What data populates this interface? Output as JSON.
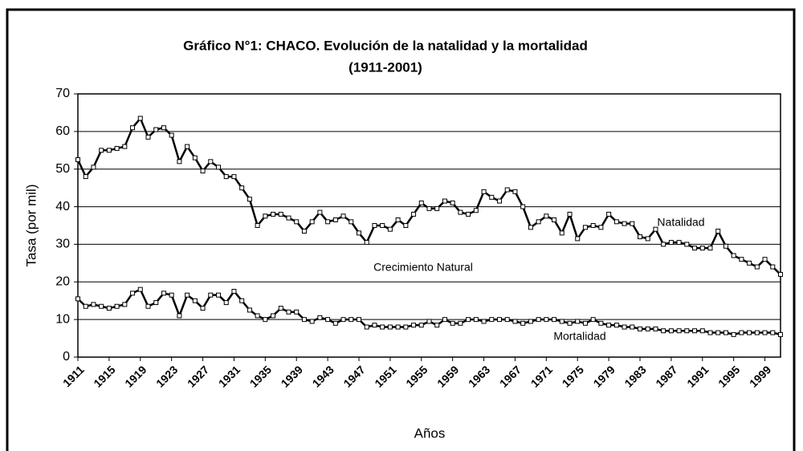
{
  "chart_data": {
    "type": "line",
    "title": "Gráfico N°1: CHACO. Evolución de la natalidad y la mortalidad",
    "subtitle": "(1911-2001)",
    "x_label": "Años",
    "y_label": "Tasa (por mil)",
    "x": [
      1911,
      1912,
      1913,
      1914,
      1915,
      1916,
      1917,
      1918,
      1919,
      1920,
      1921,
      1922,
      1923,
      1924,
      1925,
      1926,
      1927,
      1928,
      1929,
      1930,
      1931,
      1932,
      1933,
      1934,
      1935,
      1936,
      1937,
      1938,
      1939,
      1940,
      1941,
      1942,
      1943,
      1944,
      1945,
      1946,
      1947,
      1948,
      1949,
      1950,
      1951,
      1952,
      1953,
      1954,
      1955,
      1956,
      1957,
      1958,
      1959,
      1960,
      1961,
      1962,
      1963,
      1964,
      1965,
      1966,
      1967,
      1968,
      1969,
      1970,
      1971,
      1972,
      1973,
      1974,
      1975,
      1976,
      1977,
      1978,
      1979,
      1980,
      1981,
      1982,
      1983,
      1984,
      1985,
      1986,
      1987,
      1988,
      1989,
      1990,
      1991,
      1992,
      1993,
      1994,
      1995,
      1996,
      1997,
      1998,
      1999,
      2000,
      2001
    ],
    "series": [
      {
        "name": "Natalidad",
        "color": "#000000",
        "values": [
          52.5,
          48,
          50.5,
          55,
          55,
          55.5,
          56,
          61,
          63.5,
          58.5,
          60.5,
          61,
          59,
          52,
          56,
          53,
          49.5,
          52,
          50.5,
          48,
          48,
          45,
          42,
          35,
          37.5,
          38,
          38,
          37,
          36,
          33.5,
          36,
          38.5,
          36,
          36.5,
          37.5,
          36,
          33,
          30.5,
          35,
          35,
          34,
          36.5,
          35,
          38,
          41,
          39.5,
          39.5,
          41.5,
          41,
          38.5,
          38,
          39,
          44,
          42.5,
          41.5,
          44.5,
          44,
          40,
          34.5,
          36,
          37.5,
          36.5,
          33,
          38,
          31.5,
          34.5,
          35,
          34.5,
          38,
          36,
          35.5,
          35.5,
          32,
          31.5,
          34,
          30,
          30.5,
          30.5,
          30,
          29,
          29,
          29,
          33.5,
          29.5,
          27,
          26,
          25,
          24,
          26,
          24,
          22
        ]
      },
      {
        "name": "Mortalidad",
        "color": "#000000",
        "values": [
          15.5,
          13.5,
          14,
          13.5,
          13,
          13.5,
          14,
          17,
          18,
          13.5,
          14.5,
          17,
          16.5,
          11,
          16.5,
          15,
          13,
          16.5,
          16.5,
          14.5,
          17.5,
          15,
          12.5,
          11,
          10,
          11,
          13,
          12,
          12,
          10,
          9.5,
          10.5,
          10,
          9,
          10,
          10,
          10,
          8,
          8.5,
          8,
          8,
          8,
          8,
          8.5,
          8.5,
          9.5,
          8.5,
          10,
          9,
          9,
          10,
          10,
          9.5,
          10,
          10,
          10,
          9.5,
          9,
          9.5,
          10,
          10,
          10,
          9.5,
          9,
          9.5,
          9,
          10,
          9,
          8.5,
          8.5,
          8,
          8,
          7.5,
          7.5,
          7.5,
          7,
          7,
          7,
          7,
          7,
          7,
          6.5,
          6.5,
          6.5,
          6,
          6.5,
          6.5,
          6.5,
          6.5,
          6.5,
          6
        ]
      }
    ],
    "annotations": [
      "Natalidad",
      "Crecimiento Natural",
      "Mortalidad"
    ],
    "xlim": [
      1911,
      2001
    ],
    "xticks": [
      1911,
      1915,
      1919,
      1923,
      1927,
      1931,
      1935,
      1939,
      1943,
      1947,
      1951,
      1955,
      1959,
      1963,
      1967,
      1971,
      1975,
      1979,
      1983,
      1987,
      1991,
      1995,
      1999
    ],
    "ylim": [
      0,
      70
    ],
    "yticks": [
      0,
      10,
      20,
      30,
      40,
      50,
      60,
      70
    ],
    "grid": true
  }
}
